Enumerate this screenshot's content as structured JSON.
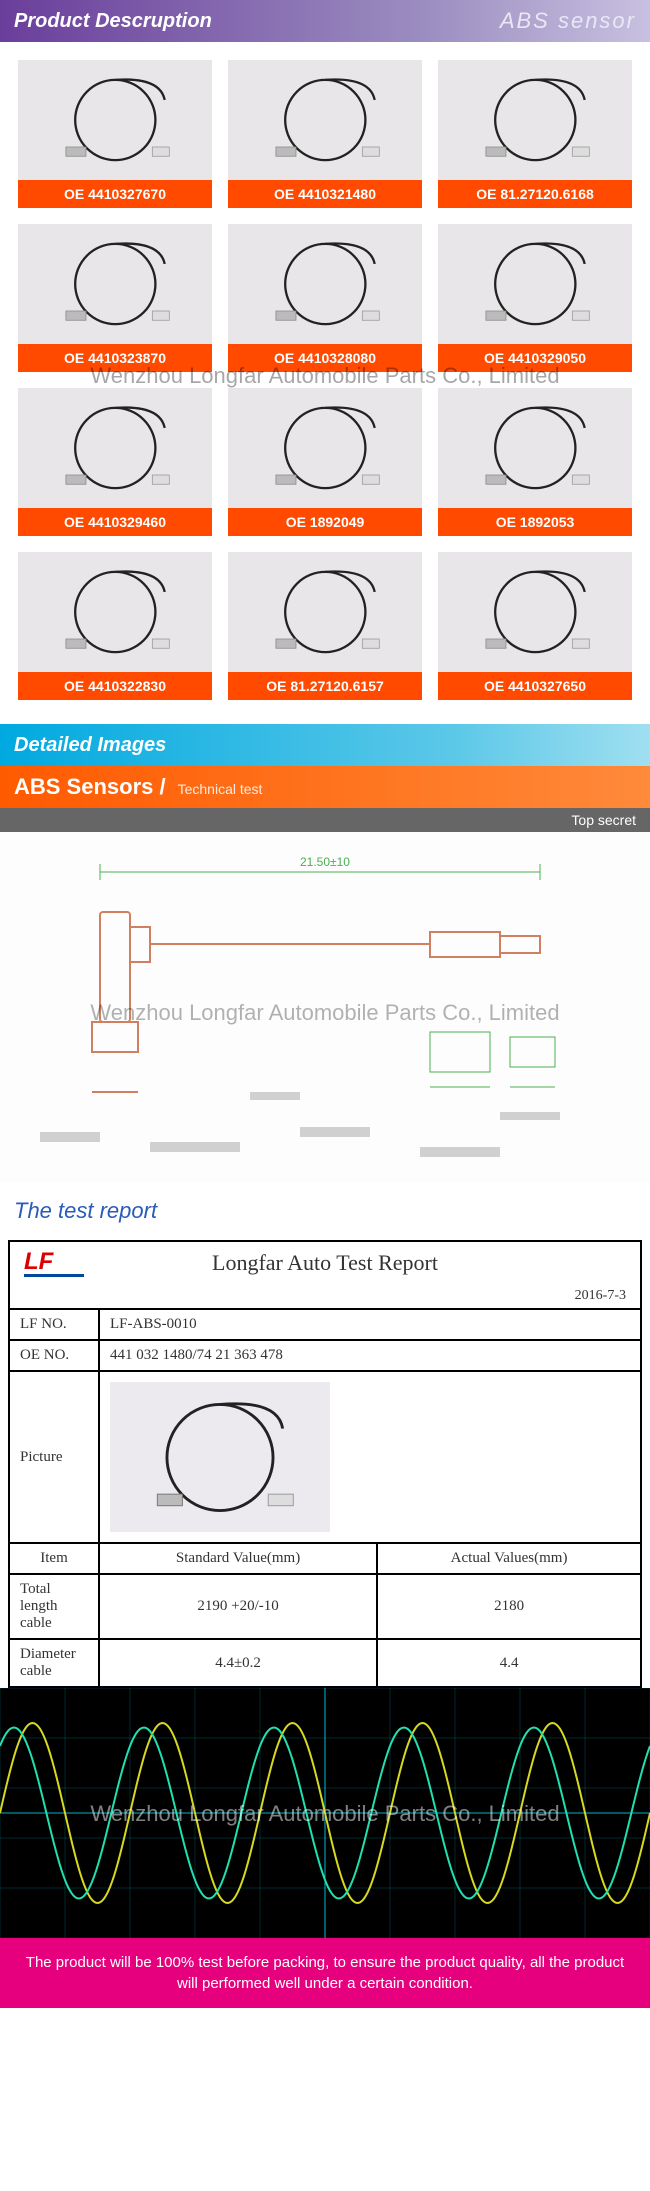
{
  "sections": {
    "product_desc": {
      "title": "Product Descruption",
      "subtitle": "ABS sensor"
    },
    "detailed": {
      "title": "Detailed Images"
    },
    "abs_tech": {
      "title": "ABS Sensors /",
      "subtitle": "Technical test"
    },
    "top_secret": "Top secret",
    "test_report": "The test report"
  },
  "watermark": "Wenzhou Longfar Automobile Parts Co., Limited",
  "products": [
    "OE 4410327670",
    "OE 4410321480",
    "OE 81.27120.6168",
    "OE 4410323870",
    "OE 4410328080",
    "OE 4410329050",
    "OE 4410329460",
    "OE 1892049",
    "OE 1892053",
    "OE 4410322830",
    "OE 81.27120.6157",
    "OE 4410327650"
  ],
  "drawing": {
    "overall_dim": "21.50±10",
    "stroke": "#4caf50",
    "body_stroke": "#e07050"
  },
  "report": {
    "logo": "LF",
    "title": "Longfar Auto Test Report",
    "date": "2016-7-3",
    "lf_no_label": "LF NO.",
    "lf_no": "LF-ABS-0010",
    "oe_no_label": "OE NO.",
    "oe_no": "441 032 1480/74 21 363 478",
    "picture_label": "Picture",
    "head_item": "Item",
    "head_std": "Standard Value(mm)",
    "head_act": "Actual Values(mm)",
    "rows": [
      {
        "item": "Total length cable",
        "std": "2190 +20/-10",
        "act": "2180"
      },
      {
        "item": "Diameter cable",
        "std": "4.4±0.2",
        "act": "4.4"
      }
    ]
  },
  "waveform": {
    "bg": "#000000",
    "grid_color": "#00e0ff",
    "line1_color": "#d8d820",
    "line2_color": "#20e0b0",
    "amplitude": 90,
    "periods": 5
  },
  "footer": "The product will be 100% test before packing, to ensure the product quality, all the product will performed well under a certain condition."
}
